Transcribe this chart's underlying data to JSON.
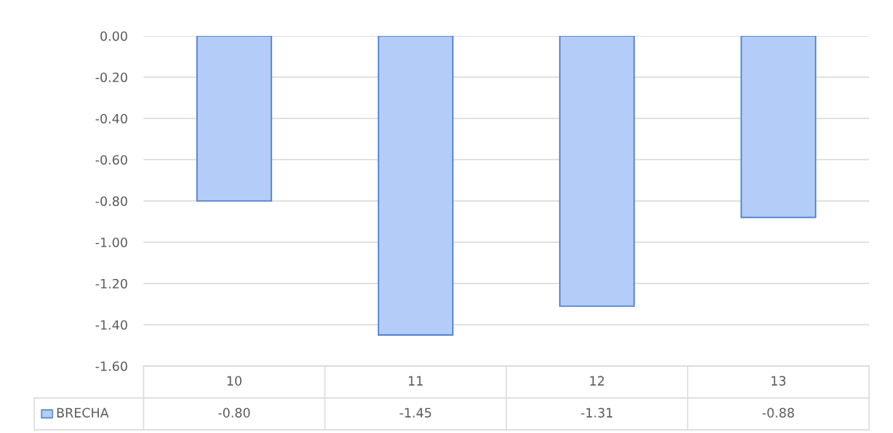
{
  "chart_data": {
    "type": "bar",
    "categories": [
      "10",
      "11",
      "12",
      "13"
    ],
    "series": [
      {
        "name": "BRECHA",
        "color": "#b3cdf8",
        "values": [
          -0.8,
          -1.45,
          -1.31,
          -0.88
        ],
        "value_labels": [
          "-0.80",
          "-1.45",
          "-1.31",
          "-0.88"
        ]
      }
    ],
    "ylim": [
      -1.6,
      0
    ],
    "yticks": [
      {
        "value": 0,
        "label": "0.00"
      },
      {
        "value": -0.2,
        "label": "-0.20"
      },
      {
        "value": -0.4,
        "label": "-0.40"
      },
      {
        "value": -0.6,
        "label": "-0.60"
      },
      {
        "value": -0.8,
        "label": "-0.80"
      },
      {
        "value": -1.0,
        "label": "-1.00"
      },
      {
        "value": -1.2,
        "label": "-1.20"
      },
      {
        "value": -1.4,
        "label": "-1.40"
      },
      {
        "value": -1.6,
        "label": "-1.60"
      }
    ],
    "grid": "y",
    "legend": "bottom"
  }
}
